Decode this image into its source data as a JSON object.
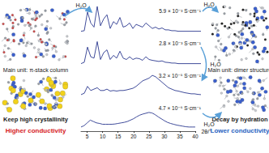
{
  "diagram": {
    "left": {
      "unit": "Main unit: π-stack column",
      "crystallinity": "Keep high crystallinity",
      "conductivity": "Higher conductivity"
    },
    "right": {
      "unit": "Main unit: dimer structure",
      "crystallinity": "Decay by hydration",
      "conductivity": "Lower conductivity"
    },
    "water": [
      "H₂O",
      "H₂O",
      "H₂O",
      "H₂O"
    ]
  },
  "chart_data": {
    "type": "line",
    "x_label": "2θ/°",
    "x": [
      3,
      4,
      5,
      6,
      7,
      8,
      9,
      10,
      11,
      12,
      13,
      14,
      15,
      16,
      17,
      18,
      19,
      20,
      21,
      22,
      23,
      24,
      25,
      26,
      27,
      28,
      29,
      30,
      31,
      32,
      33,
      34,
      35,
      36,
      37,
      38,
      39,
      40
    ],
    "xlim": [
      3,
      40
    ],
    "xticks": [
      5,
      10,
      15,
      20,
      25,
      30,
      35,
      40
    ],
    "ylim": [
      0,
      100
    ],
    "tick_labels": "x",
    "series": [
      {
        "color": "#2b3990",
        "values": [
          10,
          12,
          80,
          40,
          25,
          100,
          30,
          55,
          70,
          20,
          45,
          35,
          60,
          25,
          30,
          40,
          20,
          35,
          30,
          25,
          40,
          30,
          20,
          25,
          18,
          22,
          15,
          15,
          12,
          12,
          10,
          10,
          10,
          10,
          10,
          10,
          10,
          10
        ]
      },
      {
        "color": "#2b3990",
        "values": [
          10,
          15,
          70,
          35,
          30,
          90,
          25,
          50,
          60,
          25,
          40,
          30,
          55,
          30,
          25,
          35,
          25,
          30,
          28,
          22,
          35,
          25,
          22,
          20,
          18,
          20,
          15,
          14,
          12,
          12,
          10,
          10,
          10,
          10,
          10,
          10,
          10,
          10
        ]
      },
      {
        "color": "#2b3990",
        "values": [
          15,
          20,
          45,
          30,
          35,
          40,
          30,
          30,
          35,
          28,
          30,
          28,
          30,
          30,
          32,
          35,
          38,
          45,
          55,
          65,
          70,
          75,
          85,
          80,
          70,
          60,
          50,
          40,
          35,
          30,
          28,
          25,
          22,
          20,
          18,
          18,
          16,
          15
        ]
      },
      {
        "color": "#2b3990",
        "values": [
          15,
          20,
          30,
          40,
          35,
          30,
          28,
          25,
          25,
          25,
          25,
          26,
          28,
          30,
          32,
          35,
          40,
          45,
          52,
          58,
          62,
          65,
          68,
          66,
          60,
          52,
          45,
          38,
          32,
          28,
          25,
          22,
          20,
          18,
          16,
          15,
          15,
          15
        ]
      }
    ],
    "annotations": [
      "5.9 × 10⁻³ S·cm⁻¹",
      "2.8 × 10⁻³ S·cm⁻¹",
      "3.2 × 10⁻⁵ S·cm⁻¹",
      "4.7 × 10⁻⁶ S·cm⁻¹"
    ]
  }
}
